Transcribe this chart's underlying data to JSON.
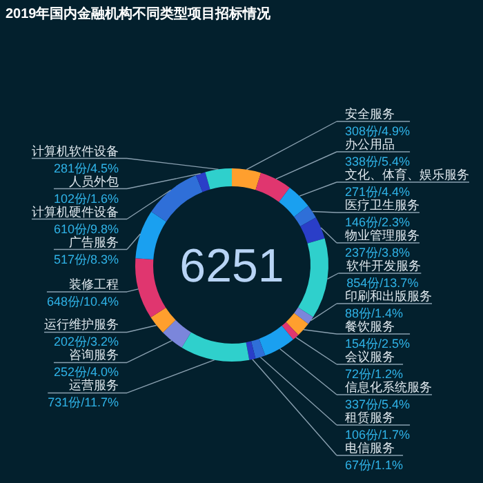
{
  "chart_data": {
    "type": "donut",
    "title": "2019年国内金融机构不同类型项目招标情况",
    "categories": [
      "安全服务",
      "办公用品",
      "文化、体育、娱乐服务",
      "医疗卫生服务",
      "物业管理服务",
      "软件开发服务",
      "印刷和出版服务",
      "餐饮服务",
      "会议服务",
      "信息化系统服务",
      "租赁服务",
      "电信服务",
      "运营服务",
      "咨询服务",
      "运行维护服务",
      "装修工程",
      "广告服务",
      "计算机硬件设备",
      "人员外包",
      "计算机软件设备"
    ],
    "values": [
      308,
      338,
      271,
      146,
      237,
      854,
      88,
      154,
      72,
      337,
      106,
      67,
      731,
      252,
      202,
      648,
      517,
      610,
      102,
      281
    ],
    "value_labels": [
      "308份/4.9%",
      "338份/5.4%",
      "271份/4.4%",
      "146份/2.3%",
      "237份/3.8%",
      "854份/13.7%",
      "88份/1.4%",
      "154份/2.5%",
      "72份/1.2%",
      "337份/5.4%",
      "106份/1.7%",
      "67份/1.1%",
      "731份/11.7%",
      "252份/4.0%",
      "202份/3.2%",
      "648份/10.4%",
      "517份/8.3%",
      "610份/9.8%",
      "102份/1.6%",
      "281份/4.5%"
    ],
    "colors": [
      "#ff9f2e",
      "#e0366f",
      "#1aa0f0",
      "#2f6fd8",
      "#2a3ec8",
      "#2fd0cc",
      "#7b86db",
      "#ff9f2e",
      "#e0366f",
      "#1aa0f0",
      "#2f6fd8",
      "#2a3ec8",
      "#2fd0cc",
      "#7b86db",
      "#ff9f2e",
      "#e0366f",
      "#1aa0f0",
      "#2f6fd8",
      "#2a3ec8",
      "#2fd0cc"
    ],
    "annotations": [
      "6251"
    ]
  }
}
